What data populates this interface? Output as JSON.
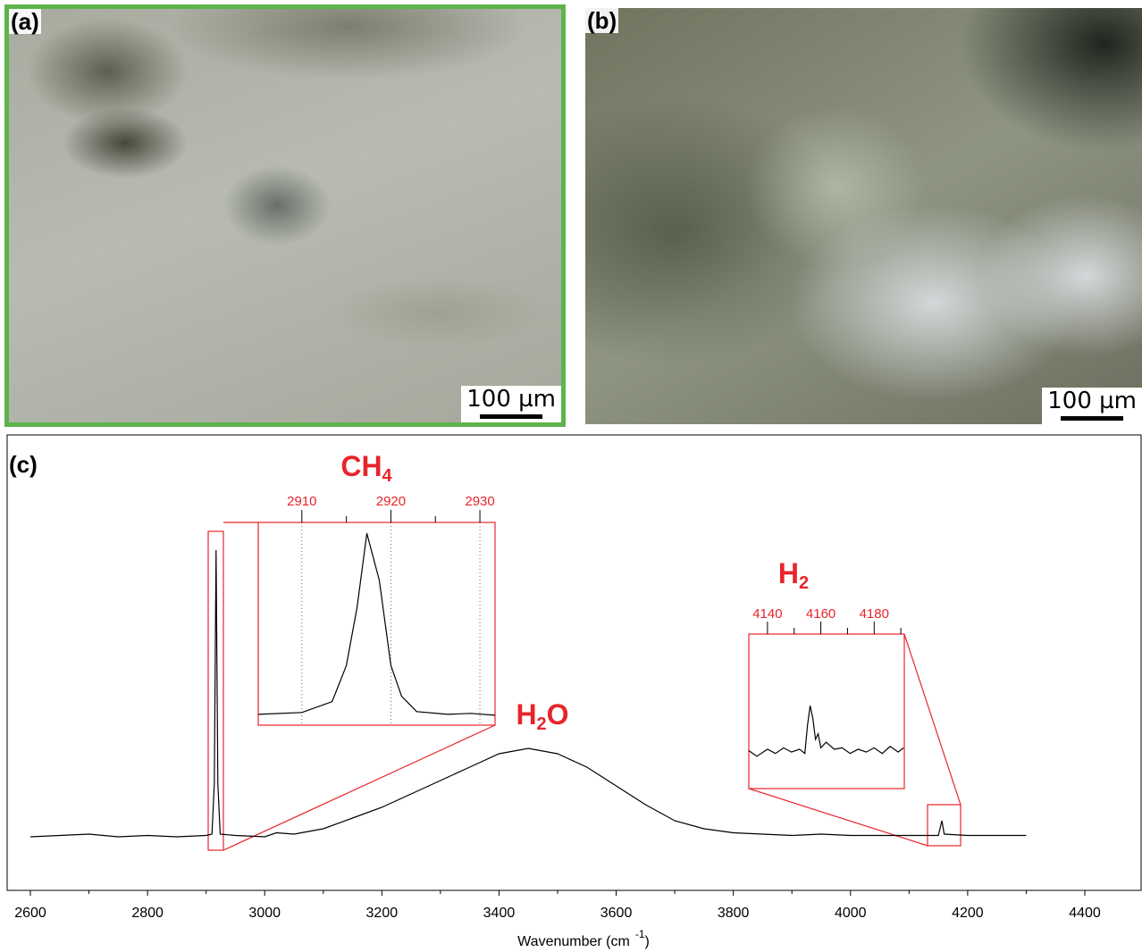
{
  "panels": [
    {
      "label": "(a)",
      "scale": "100 µm"
    },
    {
      "label": "(b)",
      "scale": "100 µm"
    }
  ],
  "chart_data": {
    "type": "line",
    "label": "(c)",
    "x_label": {
      "text": "Wavenumber (cm",
      "sup": "-1",
      "end": ")"
    },
    "xlim": [
      2600,
      4400
    ],
    "xticks": [
      2600,
      2800,
      3000,
      3200,
      3400,
      3600,
      3800,
      4000,
      4200,
      4400
    ],
    "xminor": [
      2700,
      2900,
      3100,
      3300,
      3500,
      3700,
      3900,
      4100,
      4300
    ],
    "ylim": [
      -20,
      150
    ],
    "color": "#000000",
    "x": [
      2600,
      2650,
      2700,
      2750,
      2800,
      2850,
      2900,
      2910,
      2914,
      2917,
      2920,
      2924,
      2950,
      3000,
      3020,
      3050,
      3100,
      3150,
      3200,
      3250,
      3300,
      3350,
      3400,
      3450,
      3500,
      3550,
      3600,
      3650,
      3700,
      3750,
      3800,
      3850,
      3900,
      3950,
      4000,
      4050,
      4100,
      4150,
      4156,
      4160,
      4200,
      4250,
      4300
    ],
    "values": [
      0,
      0.5,
      1,
      0,
      0.5,
      0,
      0.5,
      1,
      20,
      107,
      20,
      1,
      0.5,
      0,
      1.5,
      1,
      3,
      7,
      11,
      16,
      21,
      26,
      31,
      33,
      31,
      26,
      19,
      12,
      6,
      3,
      1.5,
      1,
      0.5,
      1,
      0.5,
      0.5,
      0.5,
      0.5,
      6,
      1,
      0.5,
      0.5,
      0.5
    ],
    "annotations": [
      {
        "text": "H",
        "sub": "2",
        "end": "O"
      }
    ],
    "insets": [
      {
        "text": "CH",
        "sub": "4",
        "color": "#e8242b",
        "grid": true,
        "xlim": [
          2905.1,
          2931.7
        ],
        "ylim": [
          -6,
          106
        ],
        "xticks": [
          2910,
          2920,
          2930
        ],
        "xminor": [
          2915,
          2925
        ],
        "x": [
          2905.1,
          2910,
          2913.4,
          2915,
          2916.2,
          2917.3,
          2918.7,
          2920,
          2921.2,
          2922.9,
          2926.4,
          2929,
          2931.7
        ],
        "values": [
          0,
          1,
          7,
          27,
          59,
          100,
          74,
          27,
          10,
          1.5,
          0,
          0.5,
          -0.5
        ]
      },
      {
        "text": "H",
        "sub": "2",
        "color": "#e8242b",
        "grid": false,
        "xlim": [
          4133,
          4191.3
        ],
        "ylim": [
          -25,
          85
        ],
        "xticks": [
          4140,
          4160,
          4180
        ],
        "xminor": [
          4150,
          4170,
          4190
        ],
        "x": [
          4133,
          4136,
          4140,
          4143,
          4146,
          4149,
          4152,
          4154,
          4155,
          4156,
          4157,
          4158,
          4159,
          4160,
          4162,
          4165,
          4168,
          4171,
          4174,
          4177,
          4180,
          4183,
          4186,
          4189,
          4191
        ],
        "values": [
          2,
          -2,
          3,
          0,
          4,
          1,
          3,
          0,
          20,
          34,
          25,
          10,
          14,
          4,
          8,
          3,
          4,
          0,
          3,
          1,
          4,
          0,
          5,
          1,
          4
        ]
      }
    ]
  }
}
